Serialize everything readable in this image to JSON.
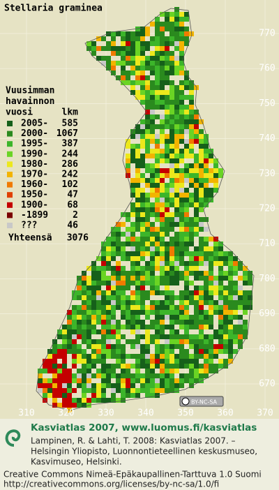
{
  "title": "Stellaria graminea",
  "legend": {
    "header": [
      "Vuusimman",
      "havainnon",
      "vuosi"
    ],
    "count_header": "lkm",
    "rows": [
      {
        "label": "2005-",
        "count": 585,
        "color": "#16601a"
      },
      {
        "label": "2000-",
        "count": 1067,
        "color": "#2a8a1e"
      },
      {
        "label": "1995-",
        "count": 387,
        "color": "#3cb52a"
      },
      {
        "label": "1990-",
        "count": 244,
        "color": "#6ad424"
      },
      {
        "label": "1980-",
        "count": 286,
        "color": "#ece81c"
      },
      {
        "label": "1970-",
        "count": 242,
        "color": "#f2b400"
      },
      {
        "label": "1960-",
        "count": 102,
        "color": "#f07a00"
      },
      {
        "label": "1950-",
        "count": 47,
        "color": "#e04000"
      },
      {
        "label": "1900-",
        "count": 68,
        "color": "#c40000"
      },
      {
        "label": "-1899",
        "count": 2,
        "color": "#7a0000"
      },
      {
        "label": "???",
        "count": 46,
        "color": "#c8c8c8"
      }
    ],
    "total_label": "Yhteensä",
    "total": 3076
  },
  "map": {
    "xticks": [
      310,
      320,
      330,
      340,
      350,
      360,
      370
    ],
    "yticks": [
      670,
      680,
      690,
      700,
      710,
      720,
      730,
      740,
      750,
      760,
      770
    ],
    "license_badge": "BY-NC-SA"
  },
  "footer": {
    "heading": "Kasviatlas 2007, www.luomus.fi/kasviatlas",
    "citation": [
      "Lampinen, R. & Lahti, T. 2008: Kasviatlas 2007. –",
      "Helsingin Yliopisto, Luonnontieteellinen keskusmuseo,",
      "Kasvimuseo, Helsinki."
    ],
    "license": "Creative Commons Nimeä-Epäkaupallinen-Tarttuva 1.0 Suomi",
    "url": "http://creativecommons.org/licenses/by-nc-sa/1.0/fi"
  }
}
